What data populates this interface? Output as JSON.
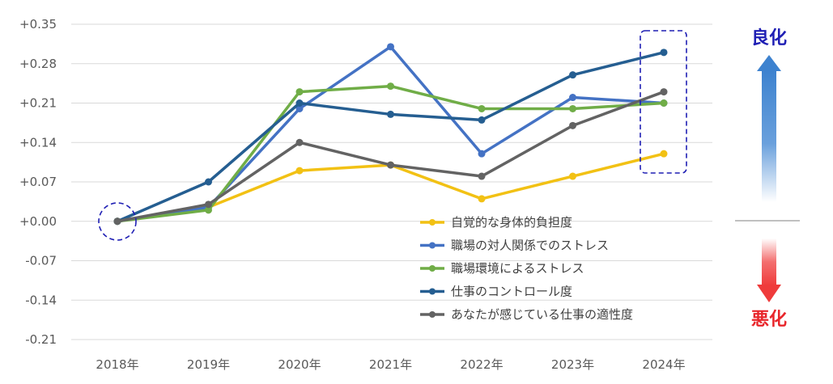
{
  "chart_data": {
    "type": "line",
    "categories": [
      "2018年",
      "2019年",
      "2020年",
      "2021年",
      "2022年",
      "2023年",
      "2024年"
    ],
    "ylim": [
      -0.21,
      0.35
    ],
    "yticks": [
      0.35,
      0.28,
      0.21,
      0.14,
      0.07,
      0.0,
      -0.07,
      -0.14,
      -0.21
    ],
    "ytick_labels": [
      "+0.35",
      "+0.28",
      "+0.21",
      "+0.14",
      "+0.07",
      "+0.00",
      "-0.07",
      "-0.14",
      "-0.21"
    ],
    "grid": true,
    "legend_position": "bottom-right",
    "series": [
      {
        "name": "自覚的な身体的負担度",
        "color": "#f2c114",
        "values": [
          0.0,
          0.025,
          0.09,
          0.1,
          0.04,
          0.08,
          0.12
        ]
      },
      {
        "name": "職場の対人関係でのストレス",
        "color": "#4472c4",
        "values": [
          0.0,
          0.025,
          0.2,
          0.31,
          0.12,
          0.22,
          0.21
        ]
      },
      {
        "name": "職場環境によるストレス",
        "color": "#70ad47",
        "values": [
          0.0,
          0.02,
          0.23,
          0.24,
          0.2,
          0.2,
          0.21
        ]
      },
      {
        "name": "仕事のコントロール度",
        "color": "#255e91",
        "values": [
          0.0,
          0.07,
          0.21,
          0.19,
          0.18,
          0.26,
          0.3
        ]
      },
      {
        "name": "あなたが感じている仕事の適性度",
        "color": "#636363",
        "values": [
          0.0,
          0.03,
          0.14,
          0.1,
          0.08,
          0.17,
          0.23
        ]
      }
    ],
    "annotations": {
      "good": "良化",
      "bad": "悪化"
    },
    "colors": {
      "good": "#1f1fb4",
      "bad": "#e8262b",
      "highlight_box": "#1f1fb4"
    }
  }
}
